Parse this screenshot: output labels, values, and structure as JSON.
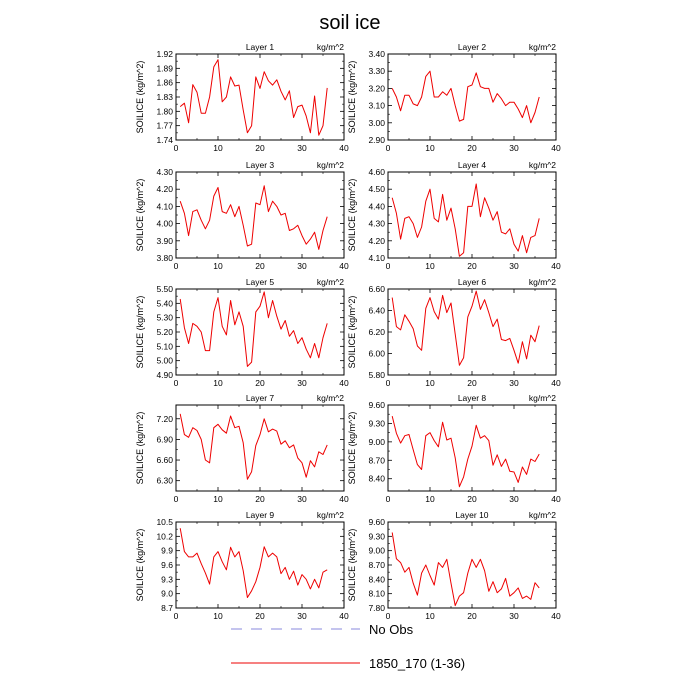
{
  "figure": {
    "title": "soil ice",
    "legend": [
      {
        "label": "No Obs",
        "color": "#8888dd",
        "style": "dashed"
      },
      {
        "label": "1850_170 (1-36)",
        "color": "#ee0000",
        "style": "solid"
      }
    ]
  },
  "chart_data": [
    {
      "type": "line",
      "title": "Layer 1",
      "units": "kg/m^2",
      "ylabel": "SOILICE  (kg/m^2)",
      "xlim": [
        0,
        40
      ],
      "xticks": [
        0,
        10,
        20,
        30,
        40
      ],
      "ylim": [
        1.74,
        1.92
      ],
      "yticks": [
        1.74,
        1.77,
        1.8,
        1.83,
        1.86,
        1.89,
        1.92
      ],
      "ytick_labels": [
        "1.74",
        "1.77",
        "1.80",
        "1.83",
        "1.86",
        "1.89",
        "1.92"
      ],
      "grid": false,
      "series": [
        {
          "name": "1850_170 (1-36)",
          "x": [
            1,
            2,
            3,
            4,
            5,
            6,
            7,
            8,
            9,
            10,
            11,
            12,
            13,
            14,
            15,
            16,
            17,
            18,
            19,
            20,
            21,
            22,
            23,
            24,
            25,
            26,
            27,
            28,
            29,
            30,
            31,
            32,
            33,
            34,
            35,
            36
          ],
          "values": [
            1.81,
            1.817,
            1.776,
            1.856,
            1.84,
            1.796,
            1.796,
            1.83,
            1.893,
            1.908,
            1.82,
            1.83,
            1.872,
            1.853,
            1.855,
            1.803,
            1.755,
            1.77,
            1.872,
            1.848,
            1.883,
            1.864,
            1.855,
            1.866,
            1.842,
            1.824,
            1.843,
            1.787,
            1.81,
            1.813,
            1.79,
            1.755,
            1.832,
            1.75,
            1.77,
            1.849
          ]
        }
      ]
    },
    {
      "type": "line",
      "title": "Layer 2",
      "units": "kg/m^2",
      "ylabel": "SOILICE  (kg/m^2)",
      "xlim": [
        0,
        40
      ],
      "xticks": [
        0,
        10,
        20,
        30,
        40
      ],
      "ylim": [
        2.9,
        3.4
      ],
      "yticks": [
        2.9,
        3.0,
        3.1,
        3.2,
        3.3,
        3.4
      ],
      "ytick_labels": [
        "2.90",
        "3.00",
        "3.10",
        "3.20",
        "3.30",
        "3.40"
      ],
      "grid": false,
      "series": [
        {
          "name": "1850_170 (1-36)",
          "x": [
            1,
            2,
            3,
            4,
            5,
            6,
            7,
            8,
            9,
            10,
            11,
            12,
            13,
            14,
            15,
            16,
            17,
            18,
            19,
            20,
            21,
            22,
            23,
            24,
            25,
            26,
            27,
            28,
            29,
            30,
            31,
            32,
            33,
            34,
            35,
            36
          ],
          "values": [
            3.2,
            3.15,
            3.07,
            3.16,
            3.16,
            3.11,
            3.1,
            3.15,
            3.27,
            3.3,
            3.15,
            3.15,
            3.18,
            3.16,
            3.2,
            3.1,
            3.01,
            3.02,
            3.21,
            3.22,
            3.29,
            3.21,
            3.2,
            3.2,
            3.12,
            3.17,
            3.14,
            3.1,
            3.12,
            3.12,
            3.08,
            3.03,
            3.1,
            3.0,
            3.06,
            3.15
          ]
        }
      ]
    },
    {
      "type": "line",
      "title": "Layer 3",
      "units": "kg/m^2",
      "ylabel": "SOILICE  (kg/m^2)",
      "xlim": [
        0,
        40
      ],
      "xticks": [
        0,
        10,
        20,
        30,
        40
      ],
      "ylim": [
        3.8,
        4.3
      ],
      "yticks": [
        3.8,
        3.9,
        4.0,
        4.1,
        4.2,
        4.3
      ],
      "ytick_labels": [
        "3.80",
        "3.90",
        "4.00",
        "4.10",
        "4.20",
        "4.30"
      ],
      "grid": false,
      "series": [
        {
          "name": "1850_170 (1-36)",
          "x": [
            1,
            2,
            3,
            4,
            5,
            6,
            7,
            8,
            9,
            10,
            11,
            12,
            13,
            14,
            15,
            16,
            17,
            18,
            19,
            20,
            21,
            22,
            23,
            24,
            25,
            26,
            27,
            28,
            29,
            30,
            31,
            32,
            33,
            34,
            35,
            36
          ],
          "values": [
            4.13,
            4.06,
            3.93,
            4.07,
            4.08,
            4.02,
            3.97,
            4.02,
            4.16,
            4.21,
            4.07,
            4.06,
            4.11,
            4.04,
            4.1,
            3.99,
            3.87,
            3.88,
            4.12,
            4.11,
            4.22,
            4.07,
            4.13,
            4.1,
            4.05,
            4.06,
            3.96,
            3.97,
            3.99,
            3.93,
            3.88,
            3.91,
            3.95,
            3.85,
            3.96,
            4.04
          ]
        }
      ]
    },
    {
      "type": "line",
      "title": "Layer 4",
      "units": "kg/m^2",
      "ylabel": "SOILICE  (kg/m^2)",
      "xlim": [
        0,
        40
      ],
      "xticks": [
        0,
        10,
        20,
        30,
        40
      ],
      "ylim": [
        4.1,
        4.6
      ],
      "yticks": [
        4.1,
        4.2,
        4.3,
        4.4,
        4.5,
        4.6
      ],
      "ytick_labels": [
        "4.10",
        "4.20",
        "4.30",
        "4.40",
        "4.50",
        "4.60"
      ],
      "grid": false,
      "series": [
        {
          "name": "1850_170 (1-36)",
          "x": [
            1,
            2,
            3,
            4,
            5,
            6,
            7,
            8,
            9,
            10,
            11,
            12,
            13,
            14,
            15,
            16,
            17,
            18,
            19,
            20,
            21,
            22,
            23,
            24,
            25,
            26,
            27,
            28,
            29,
            30,
            31,
            32,
            33,
            34,
            35,
            36
          ],
          "values": [
            4.45,
            4.36,
            4.21,
            4.33,
            4.34,
            4.3,
            4.22,
            4.28,
            4.43,
            4.5,
            4.33,
            4.31,
            4.47,
            4.32,
            4.39,
            4.27,
            4.11,
            4.13,
            4.4,
            4.4,
            4.53,
            4.34,
            4.45,
            4.39,
            4.32,
            4.37,
            4.25,
            4.24,
            4.27,
            4.18,
            4.14,
            4.23,
            4.13,
            4.22,
            4.23,
            4.33
          ]
        }
      ]
    },
    {
      "type": "line",
      "title": "Layer 5",
      "units": "kg/m^2",
      "ylabel": "SOILICE  (kg/m^2)",
      "xlim": [
        0,
        40
      ],
      "xticks": [
        0,
        10,
        20,
        30,
        40
      ],
      "ylim": [
        4.9,
        5.5
      ],
      "yticks": [
        4.9,
        5.0,
        5.1,
        5.2,
        5.3,
        5.4,
        5.5
      ],
      "ytick_labels": [
        "4.90",
        "5.00",
        "5.10",
        "5.20",
        "5.30",
        "5.40",
        "5.50"
      ],
      "grid": false,
      "series": [
        {
          "name": "1850_170 (1-36)",
          "x": [
            1,
            2,
            3,
            4,
            5,
            6,
            7,
            8,
            9,
            10,
            11,
            12,
            13,
            14,
            15,
            16,
            17,
            18,
            19,
            20,
            21,
            22,
            23,
            24,
            25,
            26,
            27,
            28,
            29,
            30,
            31,
            32,
            33,
            34,
            35,
            36
          ],
          "values": [
            5.43,
            5.23,
            5.12,
            5.26,
            5.24,
            5.2,
            5.07,
            5.07,
            5.34,
            5.44,
            5.24,
            5.18,
            5.42,
            5.25,
            5.34,
            5.24,
            4.96,
            4.99,
            5.34,
            5.38,
            5.48,
            5.3,
            5.42,
            5.31,
            5.22,
            5.28,
            5.17,
            5.21,
            5.12,
            5.16,
            5.08,
            5.02,
            5.12,
            5.02,
            5.16,
            5.26
          ]
        }
      ]
    },
    {
      "type": "line",
      "title": "Layer 6",
      "units": "kg/m^2",
      "ylabel": "SOILICE  (kg/m^2)",
      "xlim": [
        0,
        40
      ],
      "xticks": [
        0,
        10,
        20,
        30,
        40
      ],
      "ylim": [
        5.8,
        6.6
      ],
      "yticks": [
        5.8,
        6.0,
        6.2,
        6.4,
        6.6
      ],
      "ytick_labels": [
        "5.80",
        "6.00",
        "6.20",
        "6.40",
        "6.60"
      ],
      "grid": false,
      "series": [
        {
          "name": "1850_170 (1-36)",
          "x": [
            1,
            2,
            3,
            4,
            5,
            6,
            7,
            8,
            9,
            10,
            11,
            12,
            13,
            14,
            15,
            16,
            17,
            18,
            19,
            20,
            21,
            22,
            23,
            24,
            25,
            26,
            27,
            28,
            29,
            30,
            31,
            32,
            33,
            34,
            35,
            36
          ],
          "values": [
            6.52,
            6.25,
            6.22,
            6.36,
            6.3,
            6.23,
            6.07,
            6.03,
            6.42,
            6.52,
            6.39,
            6.32,
            6.54,
            6.38,
            6.47,
            6.18,
            5.89,
            5.96,
            6.34,
            6.44,
            6.58,
            6.41,
            6.5,
            6.38,
            6.25,
            6.32,
            6.13,
            6.12,
            6.14,
            6.03,
            5.91,
            6.11,
            5.95,
            6.17,
            6.11,
            6.26
          ]
        }
      ]
    },
    {
      "type": "line",
      "title": "Layer 7",
      "units": "kg/m^2",
      "ylabel": "SOILICE  (kg/m^2)",
      "xlim": [
        0,
        40
      ],
      "xticks": [
        0,
        10,
        20,
        30,
        40
      ],
      "ylim": [
        6.15,
        7.4
      ],
      "yticks": [
        6.3,
        6.6,
        6.9,
        7.2
      ],
      "ytick_labels": [
        "6.30",
        "6.60",
        "6.90",
        "7.20"
      ],
      "grid": false,
      "series": [
        {
          "name": "1850_170 (1-36)",
          "x": [
            1,
            2,
            3,
            4,
            5,
            6,
            7,
            8,
            9,
            10,
            11,
            12,
            13,
            14,
            15,
            16,
            17,
            18,
            19,
            20,
            21,
            22,
            23,
            24,
            25,
            26,
            27,
            28,
            29,
            30,
            31,
            32,
            33,
            34,
            35,
            36
          ],
          "values": [
            7.27,
            6.97,
            6.93,
            7.07,
            7.03,
            6.9,
            6.6,
            6.56,
            7.07,
            7.12,
            7.04,
            6.99,
            7.24,
            7.07,
            7.09,
            6.85,
            6.32,
            6.43,
            6.81,
            6.97,
            7.2,
            7.01,
            7.05,
            7.02,
            6.83,
            6.88,
            6.78,
            6.82,
            6.63,
            6.56,
            6.35,
            6.59,
            6.5,
            6.72,
            6.68,
            6.82
          ]
        }
      ]
    },
    {
      "type": "line",
      "title": "Layer 8",
      "units": "kg/m^2",
      "ylabel": "SOILICE  (kg/m^2)",
      "xlim": [
        0,
        40
      ],
      "xticks": [
        0,
        10,
        20,
        30,
        40
      ],
      "ylim": [
        8.2,
        9.6
      ],
      "yticks": [
        8.4,
        8.7,
        9.0,
        9.3,
        9.6
      ],
      "ytick_labels": [
        "8.40",
        "8.70",
        "9.00",
        "9.30",
        "9.60"
      ],
      "grid": false,
      "series": [
        {
          "name": "1850_170 (1-36)",
          "x": [
            1,
            2,
            3,
            4,
            5,
            6,
            7,
            8,
            9,
            10,
            11,
            12,
            13,
            14,
            15,
            16,
            17,
            18,
            19,
            20,
            21,
            22,
            23,
            24,
            25,
            26,
            27,
            28,
            29,
            30,
            31,
            32,
            33,
            34,
            35,
            36
          ],
          "values": [
            9.42,
            9.14,
            8.98,
            9.1,
            9.12,
            8.87,
            8.63,
            8.55,
            9.1,
            9.15,
            9.02,
            8.92,
            9.32,
            9.03,
            9.06,
            8.74,
            8.27,
            8.43,
            8.72,
            8.93,
            9.27,
            9.06,
            9.1,
            9.02,
            8.62,
            8.79,
            8.6,
            8.72,
            8.52,
            8.51,
            8.34,
            8.59,
            8.47,
            8.72,
            8.68,
            8.8
          ]
        }
      ]
    },
    {
      "type": "line",
      "title": "Layer 9",
      "units": "kg/m^2",
      "ylabel": "SOILICE  (kg/m^2)",
      "xlim": [
        0,
        40
      ],
      "xticks": [
        0,
        10,
        20,
        30,
        40
      ],
      "ylim": [
        8.7,
        10.5
      ],
      "yticks": [
        8.7,
        9.0,
        9.3,
        9.6,
        9.9,
        10.2,
        10.5
      ],
      "ytick_labels": [
        "8.7",
        "9.0",
        "9.3",
        "9.6",
        "9.9",
        "10.2",
        "10.5"
      ],
      "grid": false,
      "series": [
        {
          "name": "1850_170 (1-36)",
          "x": [
            1,
            2,
            3,
            4,
            5,
            6,
            7,
            8,
            9,
            10,
            11,
            12,
            13,
            14,
            15,
            16,
            17,
            18,
            19,
            20,
            21,
            22,
            23,
            24,
            25,
            26,
            27,
            28,
            29,
            30,
            31,
            32,
            33,
            34,
            35,
            36
          ],
          "values": [
            10.37,
            9.88,
            9.77,
            9.77,
            9.85,
            9.63,
            9.43,
            9.2,
            9.77,
            9.88,
            9.67,
            9.5,
            9.97,
            9.77,
            9.88,
            9.48,
            8.92,
            9.06,
            9.25,
            9.55,
            9.98,
            9.77,
            9.85,
            9.77,
            9.42,
            9.55,
            9.3,
            9.47,
            9.18,
            9.4,
            9.3,
            9.1,
            9.3,
            9.12,
            9.45,
            9.5
          ]
        }
      ]
    },
    {
      "type": "line",
      "title": "Layer 10",
      "units": "kg/m^2",
      "ylabel": "SOILICE  (kg/m^2)",
      "xlim": [
        0,
        40
      ],
      "xticks": [
        0,
        10,
        20,
        30,
        40
      ],
      "ylim": [
        7.8,
        9.6
      ],
      "yticks": [
        7.8,
        8.1,
        8.4,
        8.7,
        9.0,
        9.3,
        9.6
      ],
      "ytick_labels": [
        "7.80",
        "8.10",
        "8.40",
        "8.70",
        "9.00",
        "9.30",
        "9.60"
      ],
      "grid": false,
      "series": [
        {
          "name": "1850_170 (1-36)",
          "x": [
            1,
            2,
            3,
            4,
            5,
            6,
            7,
            8,
            9,
            10,
            11,
            12,
            13,
            14,
            15,
            16,
            17,
            18,
            19,
            20,
            21,
            22,
            23,
            24,
            25,
            26,
            27,
            28,
            29,
            30,
            31,
            32,
            33,
            34,
            35,
            36
          ],
          "values": [
            9.38,
            8.83,
            8.75,
            8.55,
            8.65,
            8.32,
            8.07,
            8.53,
            8.7,
            8.48,
            8.28,
            8.75,
            8.65,
            8.82,
            8.32,
            7.85,
            8.05,
            8.12,
            8.53,
            8.82,
            8.65,
            8.82,
            8.58,
            8.15,
            8.35,
            8.12,
            8.2,
            8.42,
            8.05,
            8.12,
            8.22,
            8.0,
            8.05,
            7.98,
            8.33,
            8.22
          ]
        }
      ]
    }
  ]
}
